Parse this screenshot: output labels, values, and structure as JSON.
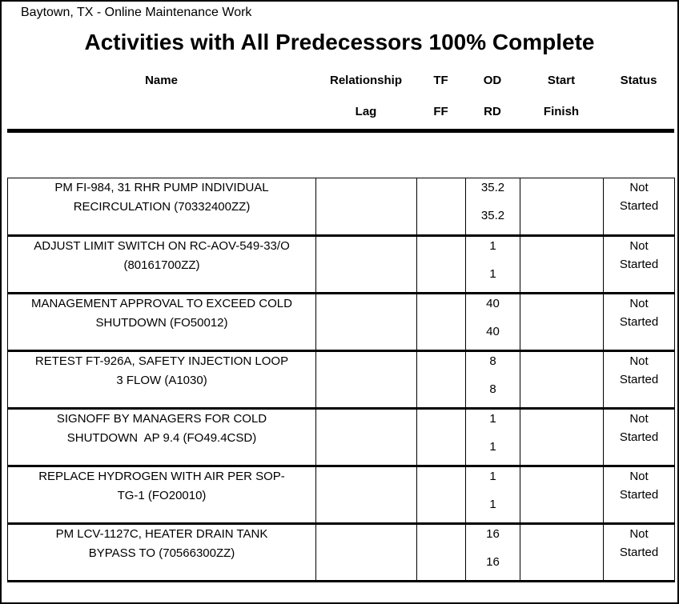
{
  "page": {
    "subtitle": "Baytown, TX - Online Maintenance Work",
    "title": "Activities with All Predecessors 100% Complete"
  },
  "columns": {
    "name": "Name",
    "relationship": "Relationship",
    "lag": "Lag",
    "tf": "TF",
    "ff": "FF",
    "od": "OD",
    "rd": "RD",
    "start": "Start",
    "finish": "Finish",
    "status": "Status"
  },
  "table": {
    "rows": [
      {
        "name_line1": "PM FI-984, 31 RHR PUMP INDIVIDUAL",
        "name_line2": "RECIRCULATION (70332400ZZ)",
        "relationship": "",
        "lag": "",
        "tf": "",
        "ff": "",
        "od": "35.2",
        "rd": "35.2",
        "start": "",
        "finish": "",
        "status_line1": "Not",
        "status_line2": "Started"
      },
      {
        "name_line1": "ADJUST LIMIT SWITCH ON RC-AOV-549-33/O",
        "name_line2": "(80161700ZZ)",
        "relationship": "",
        "lag": "",
        "tf": "",
        "ff": "",
        "od": "1",
        "rd": "1",
        "start": "",
        "finish": "",
        "status_line1": "Not",
        "status_line2": "Started"
      },
      {
        "name_line1": "MANAGEMENT APPROVAL TO EXCEED COLD",
        "name_line2": "SHUTDOWN (FO50012)",
        "relationship": "",
        "lag": "",
        "tf": "",
        "ff": "",
        "od": "40",
        "rd": "40",
        "start": "",
        "finish": "",
        "status_line1": "Not",
        "status_line2": "Started"
      },
      {
        "name_line1": "RETEST FT-926A, SAFETY INJECTION LOOP",
        "name_line2": "3 FLOW (A1030)",
        "relationship": "",
        "lag": "",
        "tf": "",
        "ff": "",
        "od": "8",
        "rd": "8",
        "start": "",
        "finish": "",
        "status_line1": "Not",
        "status_line2": "Started"
      },
      {
        "name_line1": "SIGNOFF BY MANAGERS FOR COLD",
        "name_line2": "SHUTDOWN  AP 9.4 (FO49.4CSD)",
        "relationship": "",
        "lag": "",
        "tf": "",
        "ff": "",
        "od": "1",
        "rd": "1",
        "start": "",
        "finish": "",
        "status_line1": "Not",
        "status_line2": "Started"
      },
      {
        "name_line1": "REPLACE HYDROGEN WITH AIR PER SOP-",
        "name_line2": "TG-1 (FO20010)",
        "relationship": "",
        "lag": "",
        "tf": "",
        "ff": "",
        "od": "1",
        "rd": "1",
        "start": "",
        "finish": "",
        "status_line1": "Not",
        "status_line2": "Started"
      },
      {
        "name_line1": "PM LCV-1127C, HEATER DRAIN TANK",
        "name_line2": "BYPASS TO (70566300ZZ)",
        "relationship": "",
        "lag": "",
        "tf": "",
        "ff": "",
        "od": "16",
        "rd": "16",
        "start": "",
        "finish": "",
        "status_line1": "Not",
        "status_line2": "Started"
      }
    ]
  },
  "colors": {
    "text": "#000000",
    "background": "#ffffff",
    "border": "#000000"
  }
}
